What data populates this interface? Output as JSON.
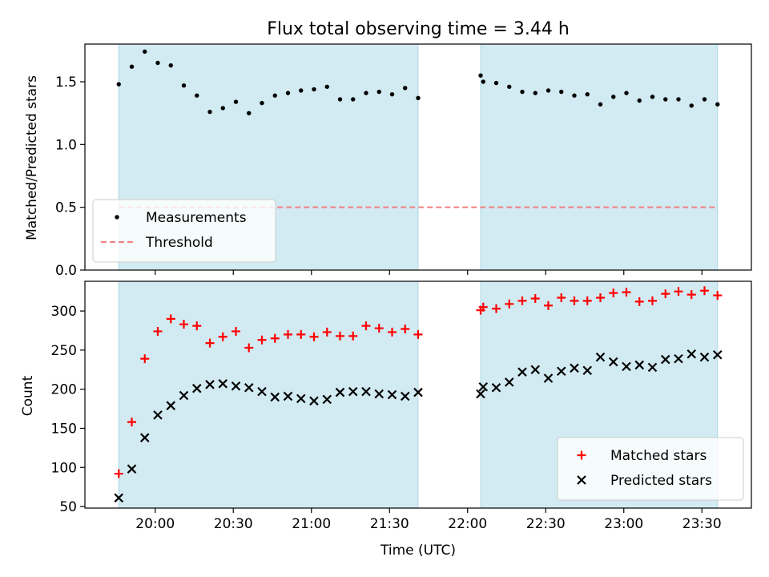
{
  "figure": {
    "title": "Flux total observing time = 3.44 h"
  },
  "chart_data": [
    {
      "type": "scatter",
      "panel": "top",
      "ylabel": "Matched/Predicted stars",
      "xlabel": "",
      "ylim": [
        0.0,
        1.8
      ],
      "xlim": [
        "19:33",
        "23:49"
      ],
      "yticks": [
        "0.0",
        "0.5",
        "1.0",
        "1.5"
      ],
      "grid": false,
      "legend": "lower-left",
      "shaded_intervals": [
        [
          "19:46",
          "21:41"
        ],
        [
          "22:05",
          "23:36"
        ]
      ],
      "shade_color": "#add8e6",
      "threshold": {
        "name": "Threshold",
        "value": 0.5,
        "x_range": [
          "19:46",
          "23:36"
        ],
        "color": "#f08080",
        "style": "dashed"
      },
      "series": [
        {
          "name": "Measurements",
          "color": "#000000",
          "marker": "dot",
          "x": [
            "19:46",
            "19:51",
            "19:56",
            "20:01",
            "20:06",
            "20:11",
            "20:16",
            "20:21",
            "20:26",
            "20:31",
            "20:36",
            "20:41",
            "20:46",
            "20:51",
            "20:56",
            "21:01",
            "21:06",
            "21:11",
            "21:16",
            "21:21",
            "21:26",
            "21:31",
            "21:36",
            "21:41",
            "22:05",
            "22:06",
            "22:11",
            "22:16",
            "22:21",
            "22:26",
            "22:31",
            "22:36",
            "22:41",
            "22:46",
            "22:51",
            "22:56",
            "23:01",
            "23:06",
            "23:11",
            "23:16",
            "23:21",
            "23:26",
            "23:31",
            "23:36"
          ],
          "y": [
            1.48,
            1.62,
            1.74,
            1.65,
            1.63,
            1.47,
            1.39,
            1.26,
            1.29,
            1.34,
            1.25,
            1.33,
            1.39,
            1.41,
            1.43,
            1.44,
            1.46,
            1.36,
            1.36,
            1.41,
            1.42,
            1.4,
            1.45,
            1.37,
            1.55,
            1.5,
            1.49,
            1.46,
            1.42,
            1.41,
            1.43,
            1.42,
            1.39,
            1.4,
            1.32,
            1.38,
            1.41,
            1.35,
            1.38,
            1.36,
            1.36,
            1.31,
            1.36,
            1.32
          ]
        }
      ]
    },
    {
      "type": "scatter",
      "panel": "bottom",
      "ylabel": "Count",
      "xlabel": "Time (UTC)",
      "ylim": [
        48,
        338
      ],
      "xlim": [
        "19:33",
        "23:49"
      ],
      "yticks": [
        "50",
        "100",
        "150",
        "200",
        "250",
        "300"
      ],
      "xticks": [
        "20:00",
        "20:30",
        "21:00",
        "21:30",
        "22:00",
        "22:30",
        "23:00",
        "23:30"
      ],
      "grid": false,
      "legend": "lower-right",
      "shaded_intervals": [
        [
          "19:46",
          "21:41"
        ],
        [
          "22:05",
          "23:36"
        ]
      ],
      "shade_color": "#add8e6",
      "series": [
        {
          "name": "Matched stars",
          "color": "#ff0000",
          "marker": "plus",
          "x": [
            "19:46",
            "19:51",
            "19:56",
            "20:01",
            "20:06",
            "20:11",
            "20:16",
            "20:21",
            "20:26",
            "20:31",
            "20:36",
            "20:41",
            "20:46",
            "20:51",
            "20:56",
            "21:01",
            "21:06",
            "21:11",
            "21:16",
            "21:21",
            "21:26",
            "21:31",
            "21:36",
            "21:41",
            "22:05",
            "22:06",
            "22:11",
            "22:16",
            "22:21",
            "22:26",
            "22:31",
            "22:36",
            "22:41",
            "22:46",
            "22:51",
            "22:56",
            "23:01",
            "23:06",
            "23:11",
            "23:16",
            "23:21",
            "23:26",
            "23:31",
            "23:36"
          ],
          "y": [
            92,
            158,
            239,
            274,
            290,
            283,
            281,
            259,
            267,
            274,
            253,
            263,
            265,
            270,
            270,
            267,
            273,
            268,
            268,
            281,
            278,
            273,
            277,
            270,
            301,
            305,
            303,
            309,
            313,
            316,
            307,
            317,
            313,
            313,
            317,
            323,
            324,
            312,
            313,
            322,
            325,
            321,
            326,
            320
          ]
        },
        {
          "name": "Predicted stars",
          "color": "#000000",
          "marker": "x",
          "x": [
            "19:46",
            "19:51",
            "19:56",
            "20:01",
            "20:06",
            "20:11",
            "20:16",
            "20:21",
            "20:26",
            "20:31",
            "20:36",
            "20:41",
            "20:46",
            "20:51",
            "20:56",
            "21:01",
            "21:06",
            "21:11",
            "21:16",
            "21:21",
            "21:26",
            "21:31",
            "21:36",
            "21:41",
            "22:05",
            "22:06",
            "22:11",
            "22:16",
            "22:21",
            "22:26",
            "22:31",
            "22:36",
            "22:41",
            "22:46",
            "22:51",
            "22:56",
            "23:01",
            "23:06",
            "23:11",
            "23:16",
            "23:21",
            "23:26",
            "23:31",
            "23:36"
          ],
          "y": [
            61,
            98,
            138,
            167,
            179,
            192,
            201,
            206,
            207,
            204,
            202,
            197,
            190,
            191,
            188,
            185,
            187,
            196,
            197,
            197,
            194,
            193,
            191,
            196,
            194,
            203,
            202,
            209,
            222,
            225,
            214,
            223,
            227,
            224,
            241,
            235,
            229,
            231,
            228,
            238,
            239,
            245,
            241,
            244
          ]
        }
      ]
    }
  ]
}
